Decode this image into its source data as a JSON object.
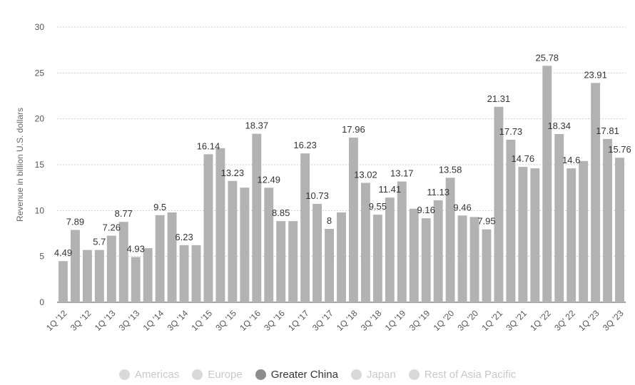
{
  "chart_data": {
    "type": "bar",
    "ylabel": "Revenue in billion U.S. dollars",
    "ylim": [
      0,
      30
    ],
    "yticks": [
      "0",
      "5",
      "10",
      "15",
      "20",
      "25",
      "30"
    ],
    "grid": true,
    "legend_position": "bottom",
    "categories": [
      "1Q '12",
      "2Q '12",
      "3Q '12",
      "4Q '12",
      "1Q '13",
      "2Q '13",
      "3Q '13",
      "4Q '13",
      "1Q '14",
      "2Q '14",
      "3Q '14",
      "4Q '14",
      "1Q '15",
      "2Q '15",
      "3Q '15",
      "4Q '15",
      "1Q '16",
      "2Q '16",
      "3Q '16",
      "4Q '16",
      "1Q '17",
      "2Q '17",
      "3Q '17",
      "4Q '17",
      "1Q '18",
      "2Q '18",
      "3Q '18",
      "4Q '18",
      "1Q '19",
      "2Q '19",
      "3Q '19",
      "4Q '19",
      "1Q '20",
      "2Q '20",
      "3Q '20",
      "4Q '20",
      "1Q '21",
      "2Q '21",
      "3Q '21",
      "4Q '21",
      "1Q '22",
      "2Q '22",
      "3Q' 22",
      "4Q '22",
      "1Q '23",
      "2Q '23",
      "3Q '23"
    ],
    "xtick_labels": [
      "1Q '12",
      "3Q '12",
      "1Q '13",
      "3Q '13",
      "1Q '14",
      "3Q '14",
      "1Q '15",
      "3Q '15",
      "1Q '16",
      "3Q '16",
      "1Q '17",
      "3Q '17",
      "1Q '18",
      "3Q '18",
      "1Q '19",
      "3Q '19",
      "1Q '20",
      "3Q '20",
      "1Q '21",
      "3Q '21",
      "1Q '22",
      "3Q' 22",
      "1Q '23",
      "3Q '23"
    ],
    "series": [
      {
        "name": "Greater China",
        "color": "#b2b2b2",
        "values": [
          4.49,
          7.89,
          5.7,
          5.7,
          7.26,
          8.77,
          4.93,
          5.9,
          9.5,
          9.8,
          6.23,
          6.23,
          16.14,
          16.8,
          13.23,
          12.5,
          18.37,
          12.49,
          8.85,
          8.85,
          16.23,
          10.73,
          8.0,
          9.8,
          17.96,
          13.02,
          9.55,
          11.41,
          13.17,
          10.2,
          9.16,
          11.13,
          13.58,
          9.46,
          9.3,
          7.95,
          21.31,
          17.73,
          14.76,
          14.6,
          25.78,
          18.34,
          14.6,
          15.4,
          23.91,
          17.81,
          15.76
        ],
        "labels": [
          "4.49",
          "7.89",
          "",
          "5.7",
          "7.26",
          "8.77",
          "4.93",
          "",
          "9.5",
          "",
          "6.23",
          "",
          "16.14",
          "",
          "13.23",
          "",
          "18.37",
          "12.49",
          "8.85",
          "",
          "16.23",
          "10.73",
          "8",
          "",
          "17.96",
          "13.02",
          "9.55",
          "11.41",
          "13.17",
          "",
          "9.16",
          "11.13",
          "13.58",
          "9.46",
          "",
          "7.95",
          "21.31",
          "17.73",
          "14.76",
          "",
          "25.78",
          "18.34",
          "14.6",
          "",
          "23.91",
          "17.81",
          "15.76"
        ]
      }
    ],
    "legend": [
      {
        "label": "Americas",
        "active": false
      },
      {
        "label": "Europe",
        "active": false
      },
      {
        "label": "Greater China",
        "active": true
      },
      {
        "label": "Japan",
        "active": false
      },
      {
        "label": "Rest of Asia Pacific",
        "active": false
      }
    ]
  }
}
